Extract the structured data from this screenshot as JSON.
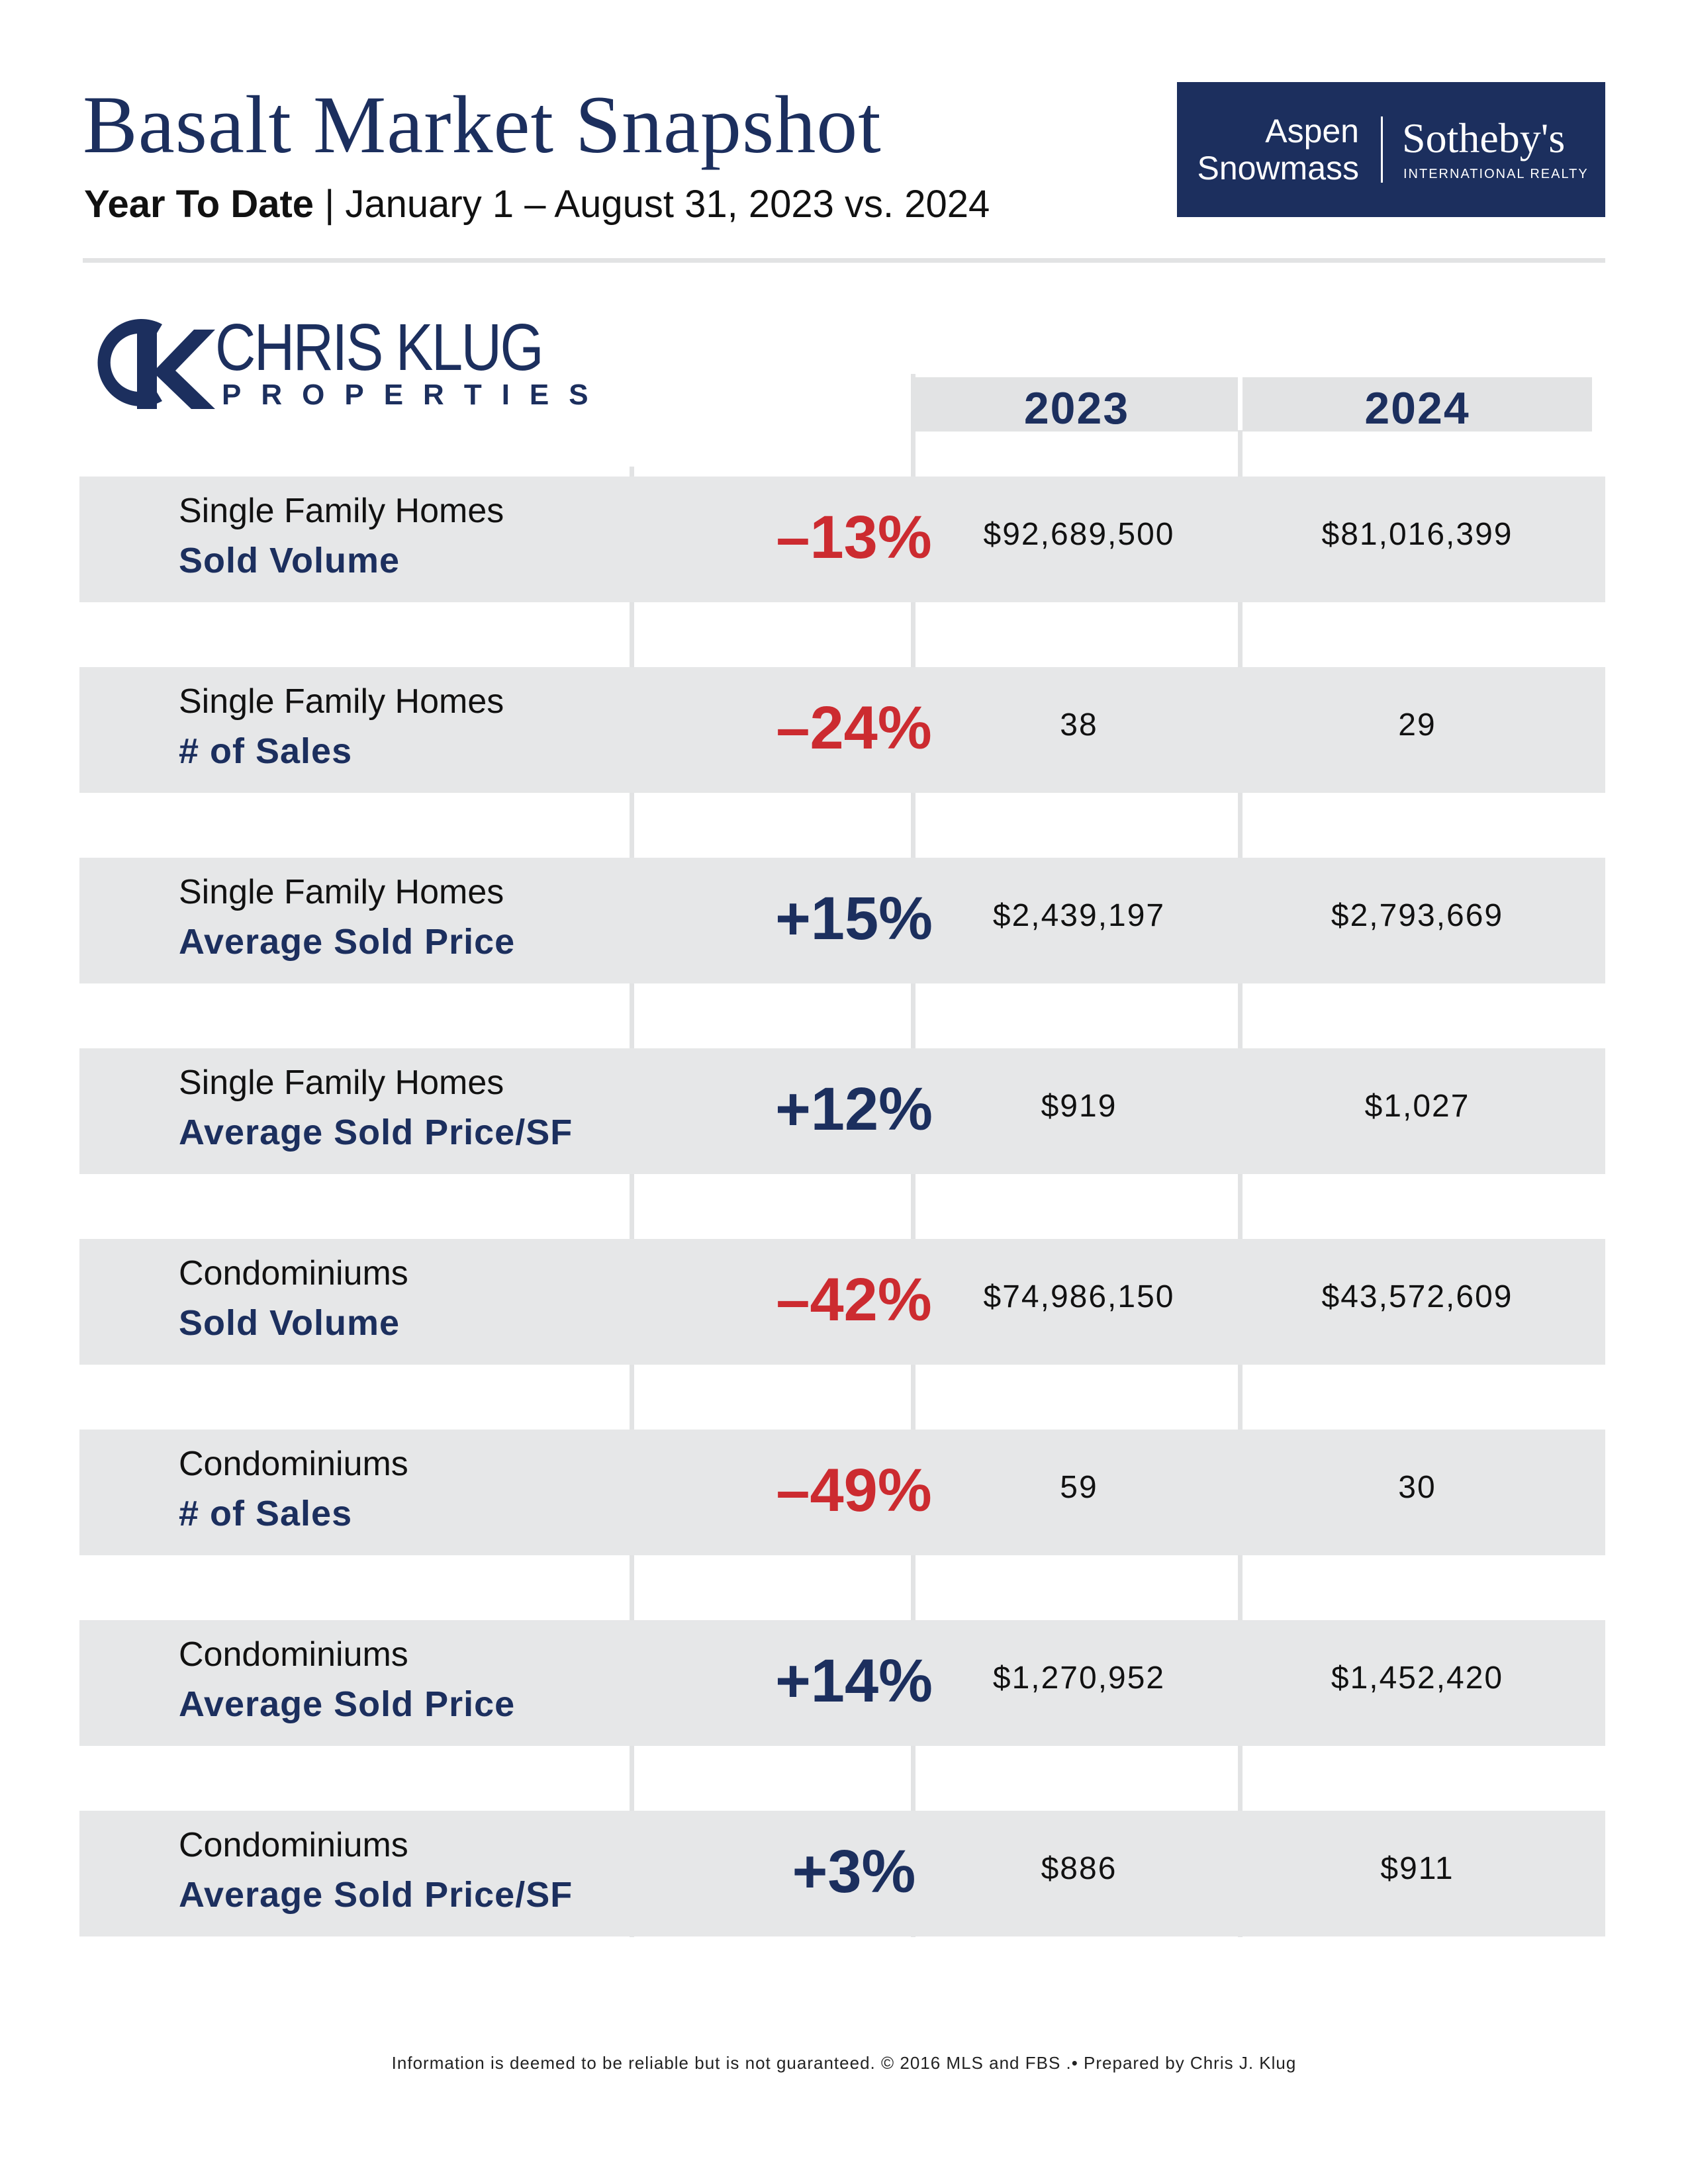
{
  "header": {
    "title": "Basalt Market Snapshot",
    "subtitle_bold": "Year To Date",
    "subtitle_separator": "|",
    "subtitle_rest": "January 1 – August 31, 2023 vs. 2024"
  },
  "brand_logo": {
    "line1": "Aspen",
    "line2": "Snowmass",
    "name": "Sotheby's",
    "tagline": "INTERNATIONAL REALTY"
  },
  "agent_logo": {
    "name": "CHRIS KLUG",
    "sub": "PROPERTIES"
  },
  "table": {
    "year_a": "2023",
    "year_b": "2024",
    "rows": [
      {
        "category": "Single Family Homes",
        "metric": "Sold Volume",
        "change": "–13%",
        "v2023": "$92,689,500",
        "v2024": "$81,016,399"
      },
      {
        "category": "Single Family Homes",
        "metric": "# of Sales",
        "change": "–24%",
        "v2023": "38",
        "v2024": "29"
      },
      {
        "category": "Single Family Homes",
        "metric": "Average Sold Price",
        "change": "+15%",
        "v2023": "$2,439,197",
        "v2024": "$2,793,669"
      },
      {
        "category": "Single Family Homes",
        "metric": "Average Sold Price/SF",
        "change": "+12%",
        "v2023": "$919",
        "v2024": "$1,027"
      },
      {
        "category": "Condominiums",
        "metric": "Sold Volume",
        "change": "–42%",
        "v2023": "$74,986,150",
        "v2024": "$43,572,609"
      },
      {
        "category": "Condominiums",
        "metric": "# of Sales",
        "change": "–49%",
        "v2023": "59",
        "v2024": "30"
      },
      {
        "category": "Condominiums",
        "metric": "Average Sold Price",
        "change": "+14%",
        "v2023": "$1,270,952",
        "v2024": "$1,452,420"
      },
      {
        "category": "Condominiums",
        "metric": "Average Sold Price/SF",
        "change": "+3%",
        "v2023": "$886",
        "v2024": "$911"
      }
    ]
  },
  "colors": {
    "navy": "#1c2f5e",
    "red": "#cc2b30",
    "row_gray": "#e6e7e8"
  },
  "footer": "Information is deemed to be reliable but is not guaranteed. © 2016 MLS and FBS .• Prepared by Chris J. Klug"
}
